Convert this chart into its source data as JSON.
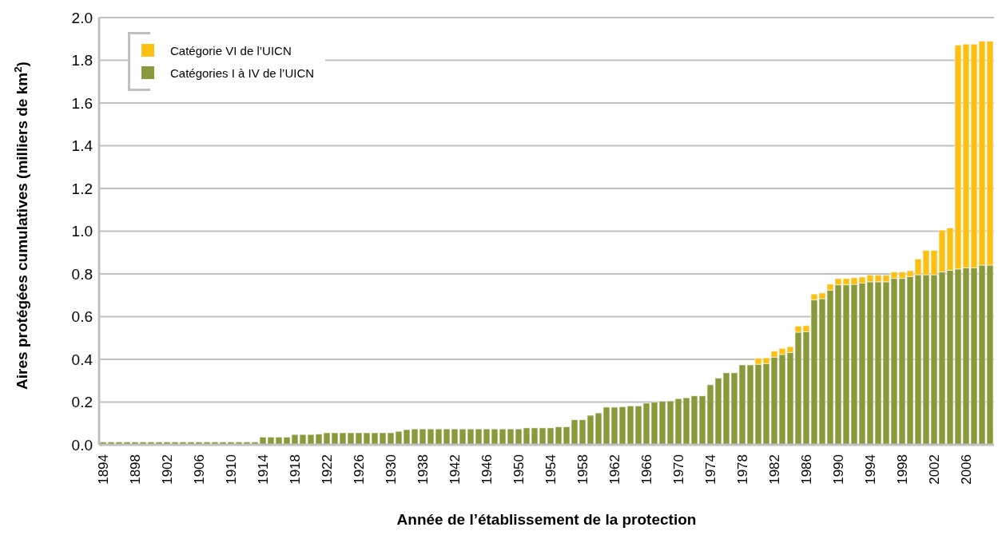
{
  "chart_data": {
    "type": "bar",
    "stacked": true,
    "xlabel": "Année de l’établissement de la protection",
    "ylabel": "Aires protégées cumulatives (milliers de km$^{2}$)",
    "categories": [
      "1894",
      null,
      null,
      null,
      "1898",
      null,
      null,
      null,
      "1902",
      null,
      null,
      null,
      "1906",
      null,
      null,
      null,
      "1910",
      null,
      null,
      null,
      "1914",
      null,
      null,
      null,
      "1918",
      null,
      null,
      null,
      "1922",
      null,
      null,
      null,
      "1926",
      null,
      null,
      null,
      "1930",
      null,
      null,
      null,
      "1938",
      null,
      null,
      null,
      "1942",
      null,
      null,
      null,
      "1946",
      null,
      null,
      null,
      "1950",
      null,
      null,
      null,
      "1954",
      null,
      null,
      null,
      "1958",
      null,
      null,
      null,
      "1962",
      null,
      null,
      null,
      "1966",
      null,
      null,
      null,
      "1970",
      null,
      null,
      null,
      "1974",
      null,
      null,
      null,
      "1978",
      null,
      null,
      null,
      "1982",
      null,
      null,
      null,
      "1986",
      null,
      null,
      null,
      "1990",
      null,
      null,
      null,
      "1994",
      null,
      null,
      null,
      "1998",
      null,
      null,
      null,
      "2002",
      null,
      null,
      null,
      "2006",
      null,
      null,
      null
    ],
    "series": [
      {
        "name": "Catégories I à IV de l’UICN",
        "color": "#8a9a3b",
        "values": [
          0.013,
          0.013,
          0.013,
          0.013,
          0.013,
          0.013,
          0.013,
          0.013,
          0.013,
          0.013,
          0.013,
          0.013,
          0.013,
          0.013,
          0.013,
          0.013,
          0.013,
          0.013,
          0.013,
          0.013,
          0.036,
          0.036,
          0.036,
          0.036,
          0.048,
          0.048,
          0.048,
          0.05,
          0.056,
          0.056,
          0.056,
          0.056,
          0.056,
          0.056,
          0.056,
          0.056,
          0.056,
          0.063,
          0.071,
          0.074,
          0.074,
          0.074,
          0.074,
          0.074,
          0.074,
          0.074,
          0.074,
          0.074,
          0.074,
          0.074,
          0.074,
          0.074,
          0.074,
          0.079,
          0.079,
          0.079,
          0.079,
          0.084,
          0.084,
          0.117,
          0.117,
          0.138,
          0.149,
          0.176,
          0.176,
          0.178,
          0.182,
          0.182,
          0.195,
          0.199,
          0.204,
          0.205,
          0.216,
          0.22,
          0.229,
          0.229,
          0.281,
          0.312,
          0.337,
          0.337,
          0.374,
          0.374,
          0.377,
          0.38,
          0.41,
          0.423,
          0.432,
          0.527,
          0.529,
          0.678,
          0.684,
          0.724,
          0.749,
          0.749,
          0.751,
          0.757,
          0.763,
          0.763,
          0.763,
          0.779,
          0.779,
          0.787,
          0.796,
          0.796,
          0.796,
          0.809,
          0.817,
          0.823,
          0.828,
          0.828,
          0.841,
          0.841
        ]
      },
      {
        "name": "Catégorie VI de l’UICN",
        "color": "#fdbf12",
        "values": [
          0,
          0,
          0,
          0,
          0,
          0,
          0,
          0,
          0,
          0,
          0,
          0,
          0,
          0,
          0,
          0,
          0,
          0,
          0,
          0,
          0,
          0,
          0,
          0,
          0,
          0,
          0,
          0,
          0,
          0,
          0,
          0,
          0,
          0,
          0,
          0,
          0,
          0,
          0,
          0,
          0,
          0,
          0,
          0,
          0,
          0,
          0,
          0,
          0,
          0,
          0,
          0,
          0,
          0,
          0,
          0,
          0,
          0,
          0,
          0,
          0,
          0,
          0,
          0,
          0,
          0,
          0,
          0,
          0,
          0,
          0,
          0,
          0,
          0,
          0,
          0,
          0,
          0,
          0,
          0,
          0,
          0,
          0.028,
          0.027,
          0.028,
          0.028,
          0.027,
          0.028,
          0.029,
          0.028,
          0.027,
          0.028,
          0.029,
          0.029,
          0.031,
          0.028,
          0.031,
          0.031,
          0.031,
          0.03,
          0.03,
          0.028,
          0.074,
          0.114,
          0.114,
          0.196,
          0.198,
          1.048,
          1.048,
          1.048,
          1.049,
          1.049
        ]
      }
    ],
    "ylim": [
      0,
      2
    ],
    "yticks": [
      {
        "value": 0,
        "label": "0.0"
      },
      0.2,
      0.4,
      0.6,
      0.8,
      {
        "value": 1,
        "label": "1.0"
      },
      1.2,
      1.4,
      1.6,
      1.8,
      {
        "value": 2,
        "label": "2.0"
      }
    ],
    "grid": "y",
    "legend": "top left"
  }
}
